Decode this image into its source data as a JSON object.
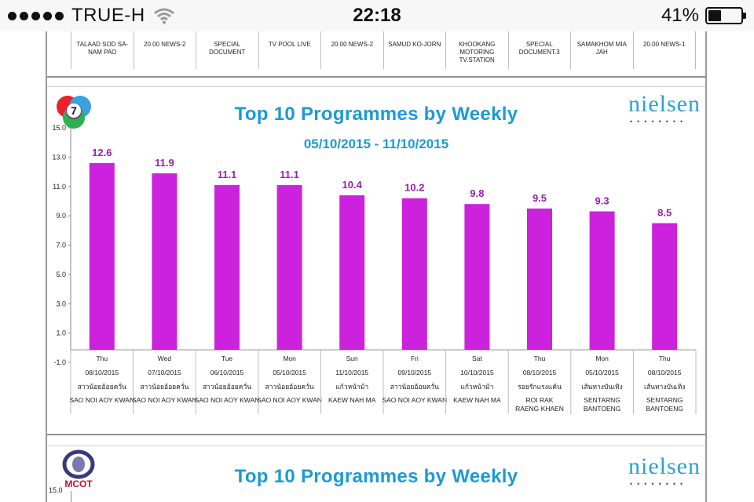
{
  "status_bar": {
    "carrier": "TRUE-H",
    "time": "22:18",
    "battery": "41%",
    "battery_level": 0.41
  },
  "previous_table_cells": [
    "TALAAD SOD SA-NAM PAO",
    "20.00 NEWS-2",
    "SPECIAL DOCUMENT",
    "TV POOL LIVE",
    "20.00 NEWS-2",
    "SAMUD KO-JORN",
    "KHOOKANG MOTORING TV.STATION",
    "SPECIAL DOCUMENT.3",
    "SAMAKHOM MIA JAH",
    "20.00 NEWS-1"
  ],
  "colors": {
    "bar": "#cc22dd",
    "value_label": "#9b1fae",
    "title": "#1b9ad6",
    "nielsen": "#1a3a6e"
  },
  "brand": {
    "channel7_logo": "7",
    "mcot_logo": "MCOT",
    "nielsen": "nielsen"
  },
  "chart_data": [
    {
      "type": "bar",
      "title": "Top 10 Programmes by Weekly",
      "subtitle": "05/10/2015 - 11/10/2015",
      "y_ticks": [
        "15.0",
        "13.0",
        "11.0",
        "9.0",
        "7.0",
        "5.0",
        "3.0",
        "1.0",
        "-1.0"
      ],
      "ylim": [
        -1,
        15
      ],
      "grid": false,
      "values": [
        12.6,
        11.9,
        11.1,
        11.1,
        10.4,
        10.2,
        9.8,
        9.5,
        9.3,
        8.5
      ],
      "value_labels": [
        "12.6",
        "11.9",
        "11.1",
        "11.1",
        "10.4",
        "10.2",
        "9.8",
        "9.5",
        "9.3",
        "8.5"
      ],
      "categories": [
        {
          "day": "Thu",
          "date": "08/10/2015",
          "thai": "สาวน้อยอ้อยควั่น",
          "name": "SAO NOI AOY KWAN"
        },
        {
          "day": "Wed",
          "date": "07/10/2015",
          "thai": "สาวน้อยอ้อยควั่น",
          "name": "SAO NOI AOY KWAN"
        },
        {
          "day": "Tue",
          "date": "06/10/2015",
          "thai": "สาวน้อยอ้อยควั่น",
          "name": "SAO NOI AOY KWAN"
        },
        {
          "day": "Mon",
          "date": "05/10/2015",
          "thai": "สาวน้อยอ้อยควั่น",
          "name": "SAO NOI AOY KWAN"
        },
        {
          "day": "Sun",
          "date": "11/10/2015",
          "thai": "แก้วหน้าม้า",
          "name": "KAEW NAH MA"
        },
        {
          "day": "Fri",
          "date": "09/10/2015",
          "thai": "สาวน้อยอ้อยควั่น",
          "name": "SAO NOI AOY KWAN"
        },
        {
          "day": "Sat",
          "date": "10/10/2015",
          "thai": "แก้วหน้าม้า",
          "name": "KAEW NAH MA"
        },
        {
          "day": "Thu",
          "date": "08/10/2015",
          "thai": "รอยรักแรงแค้น",
          "name": "ROI RAK RAENG KHAEN"
        },
        {
          "day": "Mon",
          "date": "05/10/2015",
          "thai": "เส้นทางบันเทิง",
          "name": "SENTARNG BANTOENG"
        },
        {
          "day": "Thu",
          "date": "08/10/2015",
          "thai": "เส้นทางบันเทิง",
          "name": "SENTARNG BANTOENG"
        }
      ]
    },
    {
      "type": "bar",
      "title": "Top 10 Programmes by Weekly",
      "y_ticks": [
        "15.0"
      ],
      "ylim": [
        -1,
        15
      ]
    }
  ]
}
